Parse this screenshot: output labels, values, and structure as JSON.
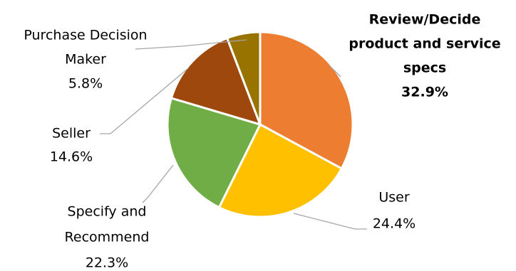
{
  "chart_data": {
    "type": "pie",
    "slices": [
      {
        "id": "review",
        "label_lines": [
          "Review/Decide",
          "product and service",
          "specs"
        ],
        "value_label": "32.9%",
        "value": 32.9,
        "color": "#ED7D31",
        "bold": true
      },
      {
        "id": "user",
        "label_lines": [
          "User"
        ],
        "value_label": "24.4%",
        "value": 24.4,
        "color": "#FFC000",
        "bold": false
      },
      {
        "id": "specify",
        "label_lines": [
          "Specify and",
          "Recommend"
        ],
        "value_label": "22.3%",
        "value": 22.3,
        "color": "#70AD47",
        "bold": false
      },
      {
        "id": "seller",
        "label_lines": [
          "Seller"
        ],
        "value_label": "14.6%",
        "value": 14.6,
        "color": "#9E480E",
        "bold": false
      },
      {
        "id": "purchase",
        "label_lines": [
          "Purchase Decision",
          "Maker"
        ],
        "value_label": "5.8%",
        "value": 5.8,
        "color": "#997300",
        "bold": false
      }
    ],
    "start_angle_deg": 0,
    "direction": "clockwise",
    "border_color": "#ffffff",
    "leader_line_color": "#A6A6A6"
  }
}
